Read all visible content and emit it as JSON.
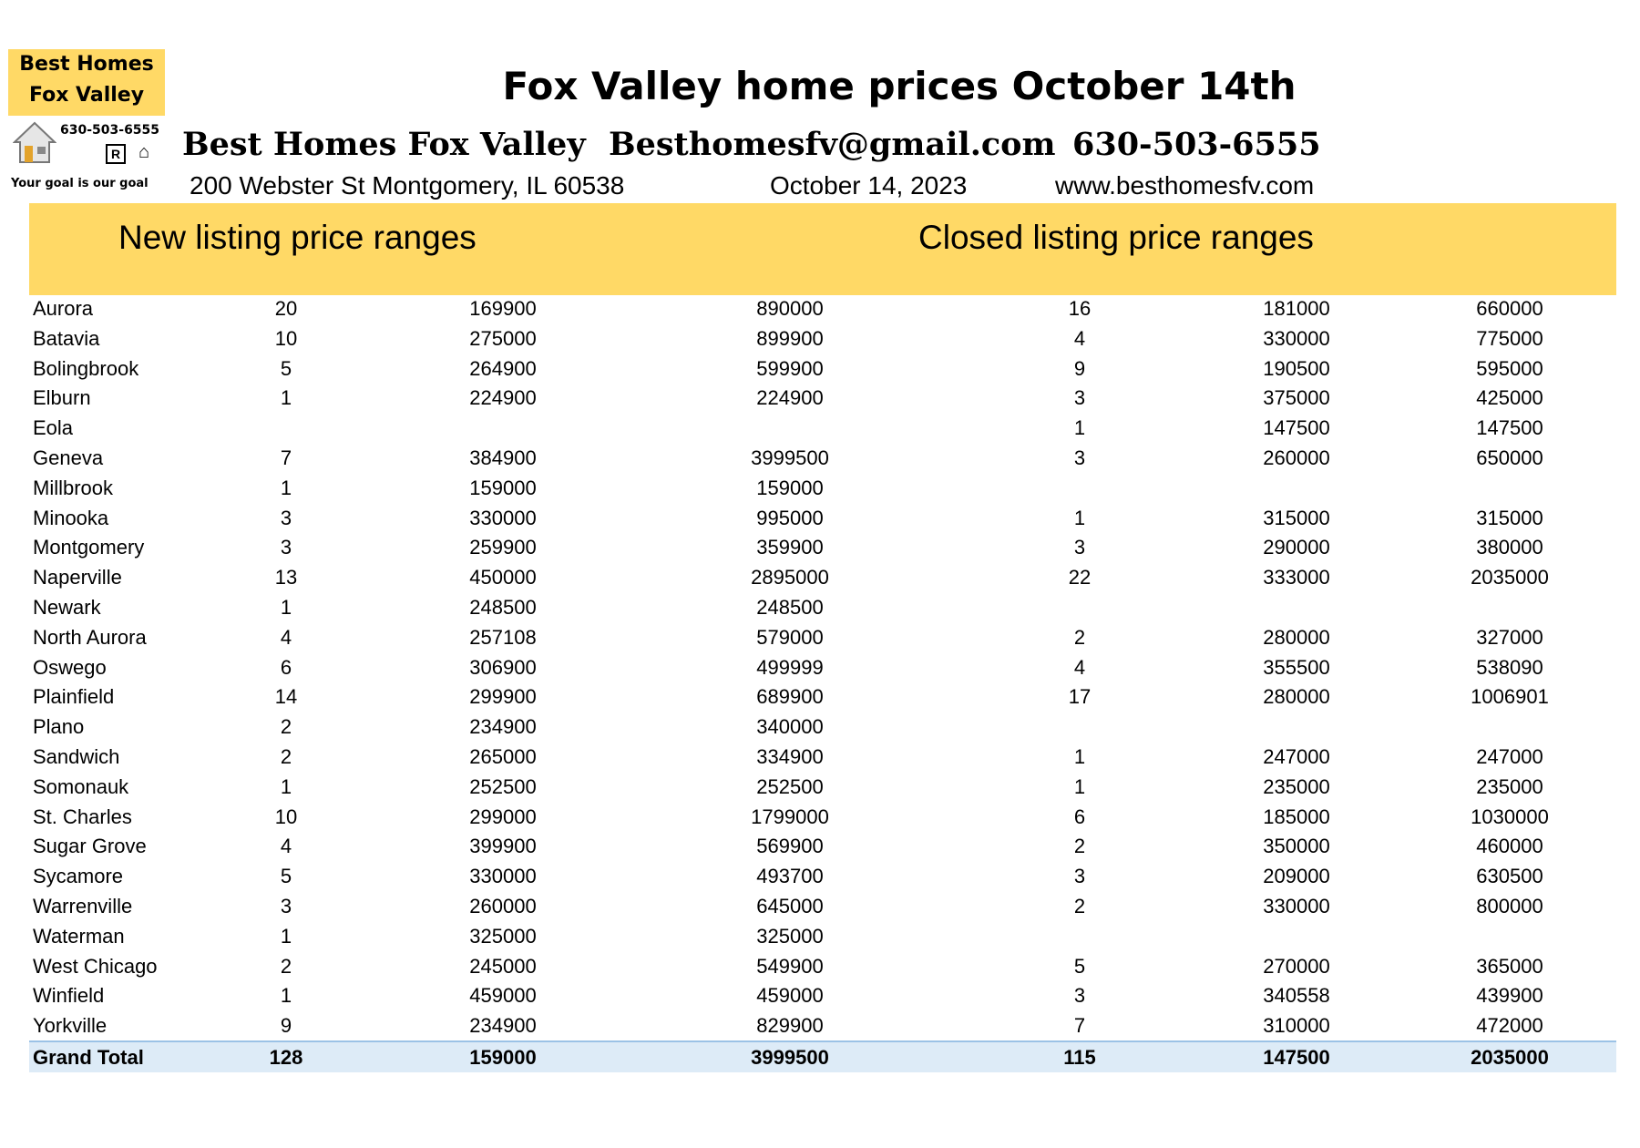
{
  "logo": {
    "line1": "Best Homes",
    "line2": "Fox Valley",
    "phone": "630-503-6555",
    "tagline": "Your goal is our goal",
    "icons": [
      "house-icon",
      "realtor-icon",
      "equal-housing-icon"
    ]
  },
  "header": {
    "title": "Fox Valley home prices October 14th",
    "company": "Best Homes Fox Valley",
    "email": "Besthomesfv@gmail.com",
    "phone": "630-503-6555",
    "address": "200 Webster St Montgomery, IL 60538",
    "date": "October 14, 2023",
    "website": "www.besthomesfv.com"
  },
  "sections": {
    "new": "New listing price ranges",
    "closed": "Closed listing price ranges"
  },
  "colors": {
    "band": "#ffd966",
    "total_bg": "#ddebf7"
  },
  "rows": [
    [
      "Aurora",
      "20",
      "169900",
      "890000",
      "16",
      "181000",
      "660000"
    ],
    [
      "Batavia",
      "10",
      "275000",
      "899900",
      "4",
      "330000",
      "775000"
    ],
    [
      "Bolingbrook",
      "5",
      "264900",
      "599900",
      "9",
      "190500",
      "595000"
    ],
    [
      "Elburn",
      "1",
      "224900",
      "224900",
      "3",
      "375000",
      "425000"
    ],
    [
      "Eola",
      "",
      "",
      "",
      "1",
      "147500",
      "147500"
    ],
    [
      "Geneva",
      "7",
      "384900",
      "3999500",
      "3",
      "260000",
      "650000"
    ],
    [
      "Millbrook",
      "1",
      "159000",
      "159000",
      "",
      "",
      ""
    ],
    [
      "Minooka",
      "3",
      "330000",
      "995000",
      "1",
      "315000",
      "315000"
    ],
    [
      "Montgomery",
      "3",
      "259900",
      "359900",
      "3",
      "290000",
      "380000"
    ],
    [
      "Naperville",
      "13",
      "450000",
      "2895000",
      "22",
      "333000",
      "2035000"
    ],
    [
      "Newark",
      "1",
      "248500",
      "248500",
      "",
      "",
      ""
    ],
    [
      "North Aurora",
      "4",
      "257108",
      "579000",
      "2",
      "280000",
      "327000"
    ],
    [
      "Oswego",
      "6",
      "306900",
      "499999",
      "4",
      "355500",
      "538090"
    ],
    [
      "Plainfield",
      "14",
      "299900",
      "689900",
      "17",
      "280000",
      "1006901"
    ],
    [
      "Plano",
      "2",
      "234900",
      "340000",
      "",
      "",
      ""
    ],
    [
      "Sandwich",
      "2",
      "265000",
      "334900",
      "1",
      "247000",
      "247000"
    ],
    [
      "Somonauk",
      "1",
      "252500",
      "252500",
      "1",
      "235000",
      "235000"
    ],
    [
      "St. Charles",
      "10",
      "299000",
      "1799000",
      "6",
      "185000",
      "1030000"
    ],
    [
      "Sugar Grove",
      "4",
      "399900",
      "569900",
      "2",
      "350000",
      "460000"
    ],
    [
      "Sycamore",
      "5",
      "330000",
      "493700",
      "3",
      "209000",
      "630500"
    ],
    [
      "Warrenville",
      "3",
      "260000",
      "645000",
      "2",
      "330000",
      "800000"
    ],
    [
      "Waterman",
      "1",
      "325000",
      "325000",
      "",
      "",
      ""
    ],
    [
      "West Chicago",
      "2",
      "245000",
      "549900",
      "5",
      "270000",
      "365000"
    ],
    [
      "Winfield",
      "1",
      "459000",
      "459000",
      "3",
      "340558",
      "439900"
    ],
    [
      "Yorkville",
      "9",
      "234900",
      "829900",
      "7",
      "310000",
      "472000"
    ]
  ],
  "total": [
    "Grand Total",
    "128",
    "159000",
    "3999500",
    "115",
    "147500",
    "2035000"
  ]
}
